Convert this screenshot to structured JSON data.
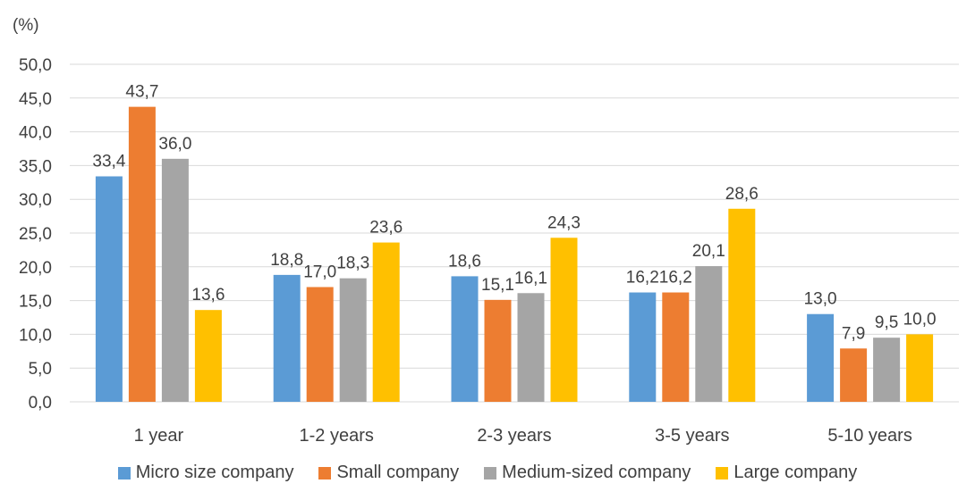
{
  "chart_data": {
    "type": "bar",
    "unit_label": "(%)",
    "categories": [
      "1 year",
      "1-2 years",
      "2-3 years",
      "3-5 years",
      "5-10 years"
    ],
    "series": [
      {
        "name": "Micro size company",
        "color": "#5B9BD5",
        "values": [
          33.4,
          18.8,
          18.6,
          16.2,
          13.0
        ],
        "labels": [
          "33,4",
          "18,8",
          "18,6",
          "16,2",
          "13,0"
        ]
      },
      {
        "name": "Small company",
        "color": "#ED7D31",
        "values": [
          43.7,
          17.0,
          15.1,
          16.2,
          7.9
        ],
        "labels": [
          "43,7",
          "17,0",
          "15,1",
          "16,2",
          "7,9"
        ]
      },
      {
        "name": "Medium-sized company",
        "color": "#A5A5A5",
        "values": [
          36.0,
          18.3,
          16.1,
          20.1,
          9.5
        ],
        "labels": [
          "36,0",
          "18,3",
          "16,1",
          "20,1",
          "9,5"
        ]
      },
      {
        "name": "Large company",
        "color": "#FFC000",
        "values": [
          13.6,
          23.6,
          24.3,
          28.6,
          10.0
        ],
        "labels": [
          "13,6",
          "23,6",
          "24,3",
          "28,6",
          "10,0"
        ]
      }
    ],
    "ylim": [
      0,
      50
    ],
    "yticks": [
      "0,0",
      "5,0",
      "10,0",
      "15,0",
      "20,0",
      "25,0",
      "30,0",
      "35,0",
      "40,0",
      "45,0",
      "50,0"
    ],
    "grid": true,
    "legend_position": "bottom"
  }
}
